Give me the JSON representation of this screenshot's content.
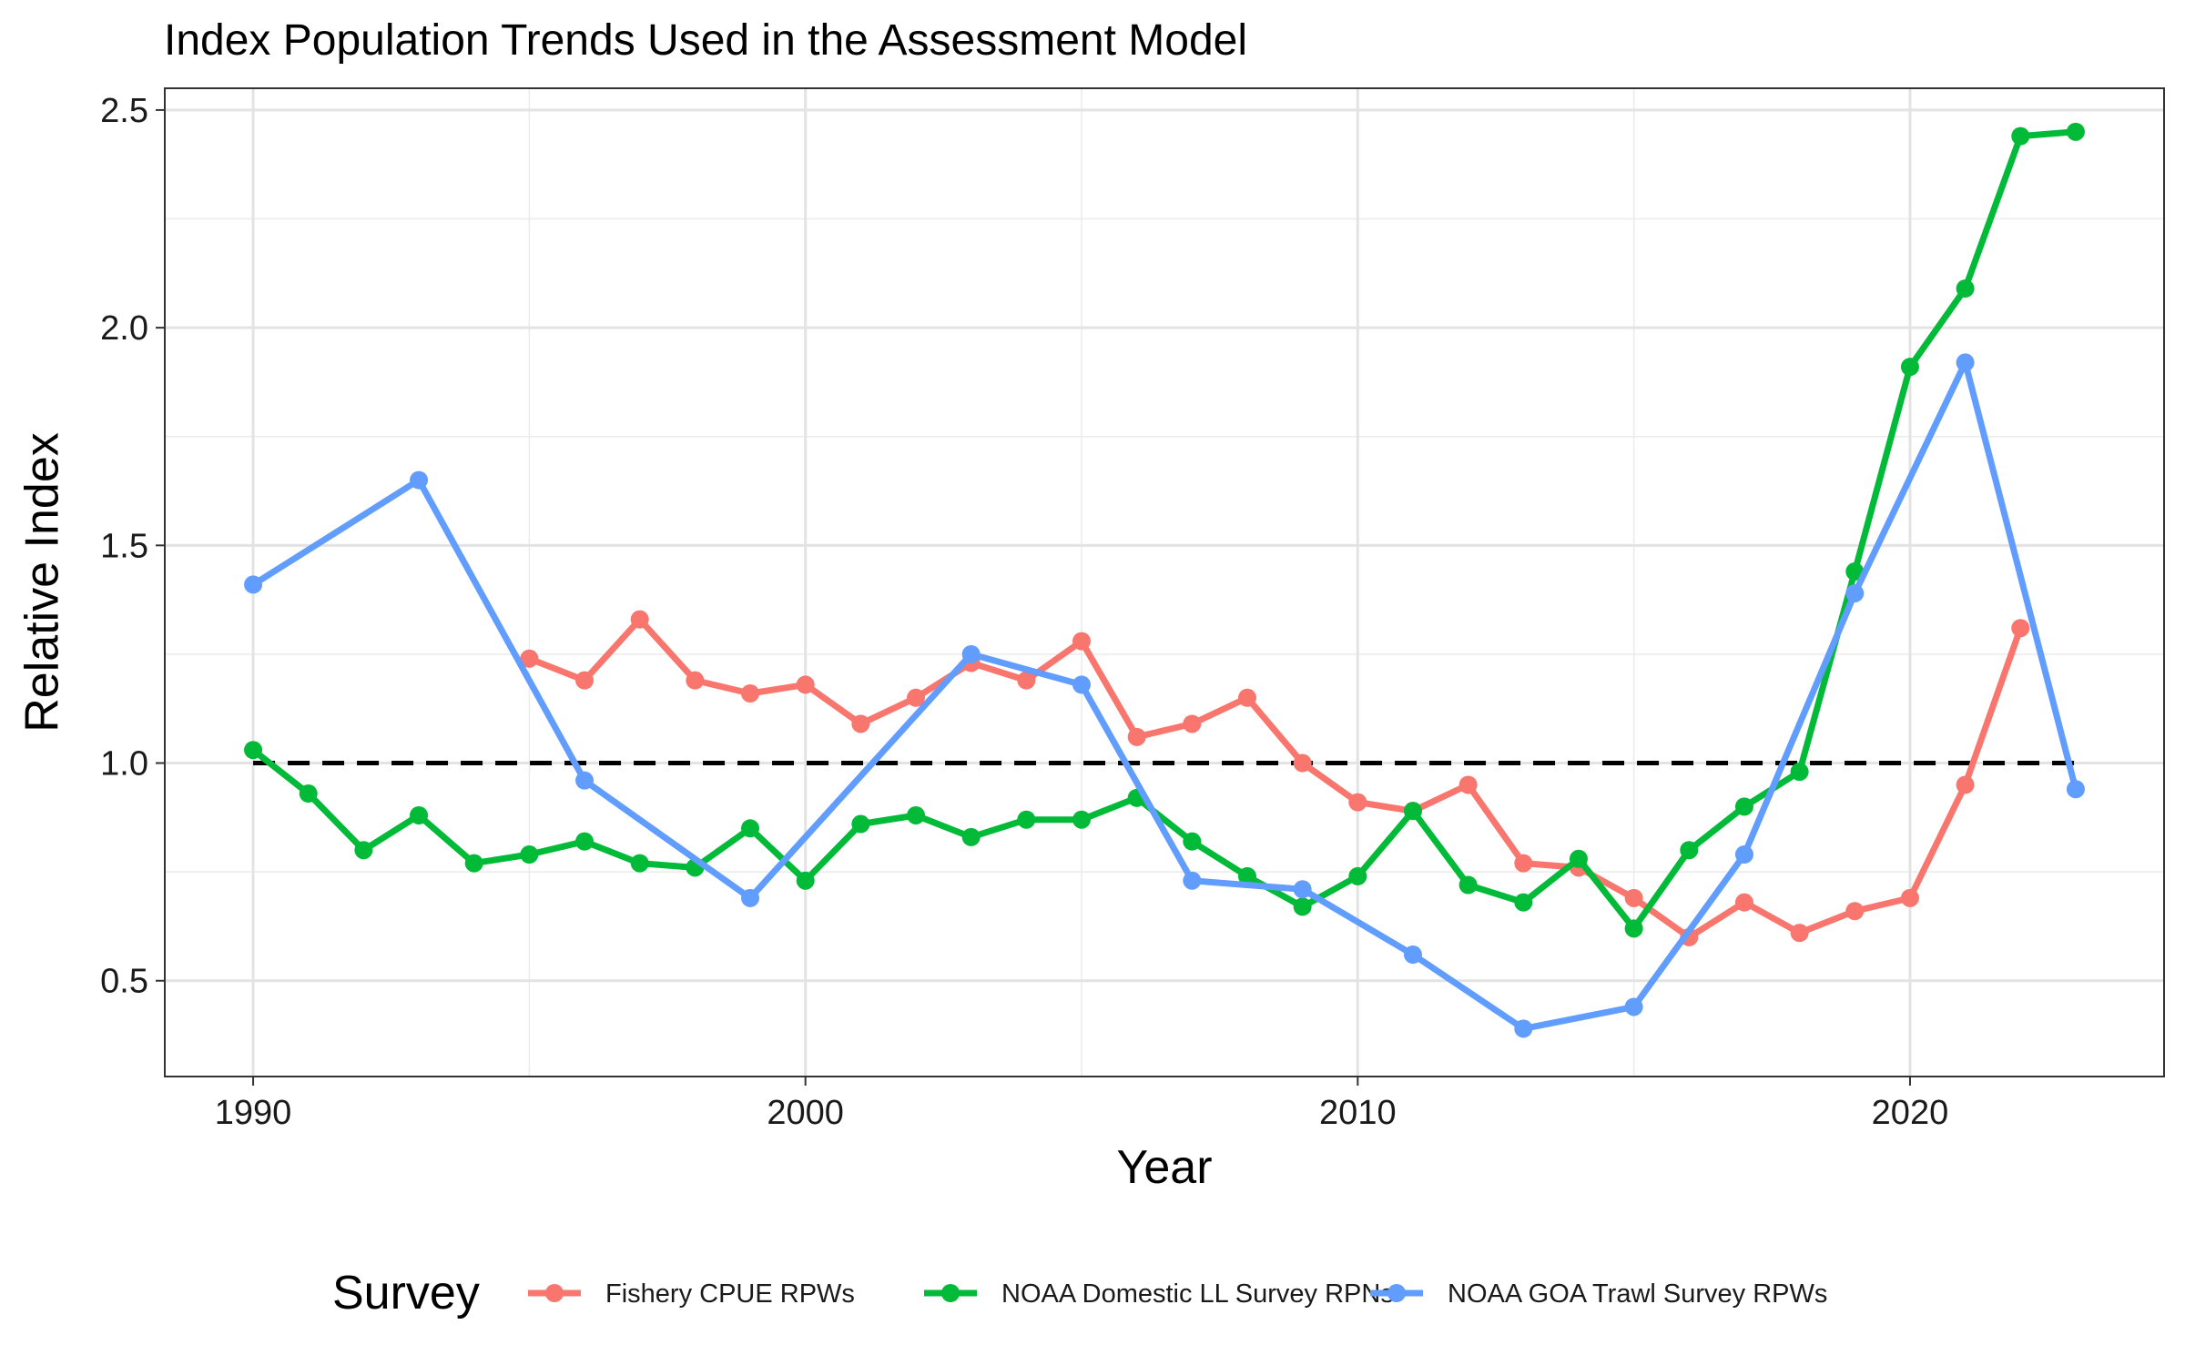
{
  "chart_data": {
    "type": "line",
    "title": "Index Population Trends Used in the Assessment Model",
    "xlabel": "Year",
    "ylabel": "Relative Index",
    "xlim": [
      1988.4,
      2024.6
    ],
    "ylim": [
      0.28,
      2.55
    ],
    "x_ticks": [
      1990,
      2000,
      2010,
      2020
    ],
    "y_ticks": [
      0.5,
      1.0,
      1.5,
      2.0,
      2.5
    ],
    "y_tick_labels": [
      "0.5",
      "1.0",
      "1.5",
      "2.0",
      "2.5"
    ],
    "grid": true,
    "legend": {
      "title": "Survey",
      "position": "bottom"
    },
    "reference_line": {
      "y": 1.0,
      "x_range": [
        1990,
        2023
      ],
      "style": "dashed",
      "color": "#000000"
    },
    "series": [
      {
        "name": "Fishery CPUE RPWs",
        "color": "#F8766D",
        "points": [
          [
            1995,
            1.24
          ],
          [
            1996,
            1.19
          ],
          [
            1997,
            1.33
          ],
          [
            1998,
            1.19
          ],
          [
            1999,
            1.16
          ],
          [
            2000,
            1.18
          ],
          [
            2001,
            1.09
          ],
          [
            2002,
            1.15
          ],
          [
            2003,
            1.23
          ],
          [
            2004,
            1.19
          ],
          [
            2005,
            1.28
          ],
          [
            2006,
            1.06
          ],
          [
            2007,
            1.09
          ],
          [
            2008,
            1.15
          ],
          [
            2009,
            1.0
          ],
          [
            2010,
            0.91
          ],
          [
            2011,
            0.89
          ],
          [
            2012,
            0.95
          ],
          [
            2013,
            0.77
          ],
          [
            2014,
            0.76
          ],
          [
            2015,
            0.69
          ],
          [
            2016,
            0.6
          ],
          [
            2017,
            0.68
          ],
          [
            2018,
            0.61
          ],
          [
            2019,
            0.66
          ],
          [
            2020,
            0.69
          ],
          [
            2021,
            0.95
          ],
          [
            2022,
            1.31
          ]
        ]
      },
      {
        "name": "NOAA Domestic LL Survey RPNs",
        "color": "#00BA38",
        "points": [
          [
            1990,
            1.03
          ],
          [
            1991,
            0.93
          ],
          [
            1992,
            0.8
          ],
          [
            1993,
            0.88
          ],
          [
            1994,
            0.77
          ],
          [
            1995,
            0.79
          ],
          [
            1996,
            0.82
          ],
          [
            1997,
            0.77
          ],
          [
            1998,
            0.76
          ],
          [
            1999,
            0.85
          ],
          [
            2000,
            0.73
          ],
          [
            2001,
            0.86
          ],
          [
            2002,
            0.88
          ],
          [
            2003,
            0.83
          ],
          [
            2004,
            0.87
          ],
          [
            2005,
            0.87
          ],
          [
            2006,
            0.92
          ],
          [
            2007,
            0.82
          ],
          [
            2008,
            0.74
          ],
          [
            2009,
            0.67
          ],
          [
            2010,
            0.74
          ],
          [
            2011,
            0.89
          ],
          [
            2012,
            0.72
          ],
          [
            2013,
            0.68
          ],
          [
            2014,
            0.78
          ],
          [
            2015,
            0.62
          ],
          [
            2016,
            0.8
          ],
          [
            2017,
            0.9
          ],
          [
            2018,
            0.98
          ],
          [
            2019,
            1.44
          ],
          [
            2020,
            1.91
          ],
          [
            2021,
            2.09
          ],
          [
            2022,
            2.44
          ],
          [
            2023,
            2.45
          ]
        ]
      },
      {
        "name": "NOAA GOA Trawl Survey RPWs",
        "color": "#619CFF",
        "points": [
          [
            1990,
            1.41
          ],
          [
            1993,
            1.65
          ],
          [
            1996,
            0.96
          ],
          [
            1999,
            0.69
          ],
          [
            2003,
            1.25
          ],
          [
            2005,
            1.18
          ],
          [
            2007,
            0.73
          ],
          [
            2009,
            0.71
          ],
          [
            2011,
            0.56
          ],
          [
            2013,
            0.39
          ],
          [
            2015,
            0.44
          ],
          [
            2017,
            0.79
          ],
          [
            2019,
            1.39
          ],
          [
            2021,
            1.92
          ],
          [
            2023,
            0.94
          ]
        ]
      }
    ]
  }
}
